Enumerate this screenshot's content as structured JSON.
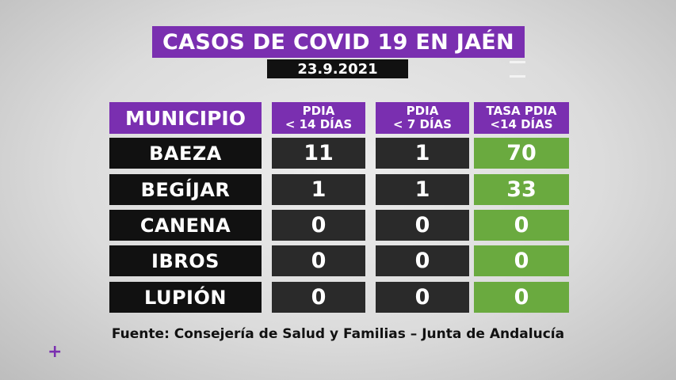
{
  "title": "CASOS DE COVID 19 EN JAÉN",
  "date": "23.9.2021",
  "headers": {
    "municipio": "MUNICIPIO",
    "pdia14_line1": "PDIA",
    "pdia14_line2": "< 14 DÍAS",
    "pdia7_line1": "PDIA",
    "pdia7_line2": "< 7 DÍAS",
    "tasa_line1": "TASA PDIA",
    "tasa_line2": "<14 DÍAS"
  },
  "rows": [
    {
      "municipio": "BAEZA",
      "pdia14": "11",
      "pdia7": "1",
      "tasa": "70"
    },
    {
      "municipio": "BEGÍJAR",
      "pdia14": "1",
      "pdia7": "1",
      "tasa": "33"
    },
    {
      "municipio": "CANENA",
      "pdia14": "0",
      "pdia7": "0",
      "tasa": "0"
    },
    {
      "municipio": "IBROS",
      "pdia14": "0",
      "pdia7": "0",
      "tasa": "0"
    },
    {
      "municipio": "LUPIÓN",
      "pdia14": "0",
      "pdia7": "0",
      "tasa": "0"
    }
  ],
  "source": "Fuente: Consejería de Salud y Familias – Junta de Andalucía",
  "plus_mark": "+",
  "colors": {
    "header": "#7a2fb0",
    "municipio_bg": "#111111",
    "value_bg": "#2a2a2a",
    "rate_bg": "#6aaa3f"
  }
}
